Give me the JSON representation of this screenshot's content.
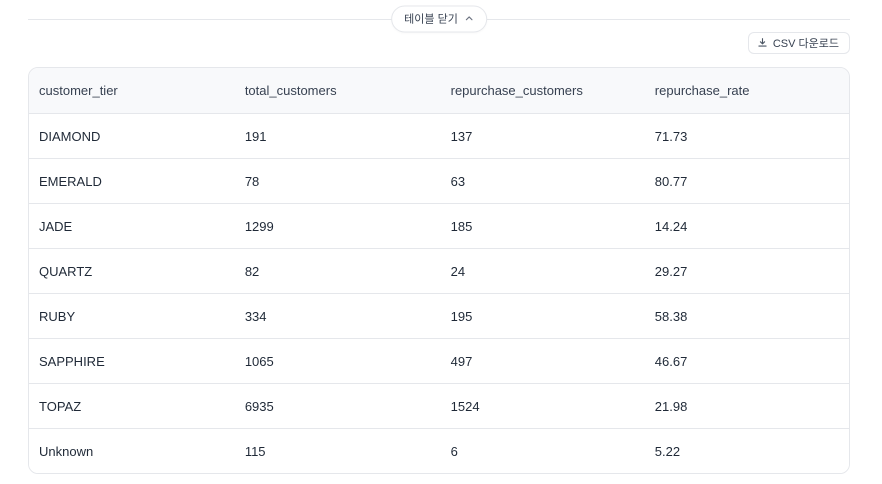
{
  "toolbar": {
    "collapse_button": {
      "label": "테이블 닫기",
      "icon": "chevron-up-icon"
    },
    "csv_button": {
      "label": "CSV 다운로드",
      "icon": "download-icon"
    }
  },
  "table": {
    "columns": [
      "customer_tier",
      "total_customers",
      "repurchase_customers",
      "repurchase_rate"
    ],
    "rows": [
      [
        "DIAMOND",
        "191",
        "137",
        "71.73"
      ],
      [
        "EMERALD",
        "78",
        "63",
        "80.77"
      ],
      [
        "JADE",
        "1299",
        "185",
        "14.24"
      ],
      [
        "QUARTZ",
        "82",
        "24",
        "29.27"
      ],
      [
        "RUBY",
        "334",
        "195",
        "58.38"
      ],
      [
        "SAPPHIRE",
        "1065",
        "497",
        "46.67"
      ],
      [
        "TOPAZ",
        "6935",
        "1524",
        "21.98"
      ],
      [
        "Unknown",
        "115",
        "6",
        "5.22"
      ]
    ]
  },
  "colors": {
    "border": "#e5e7eb",
    "header_bg": "#f8f9fb",
    "header_text": "#374151",
    "cell_text": "#1f2937",
    "page_bg": "#ffffff"
  }
}
